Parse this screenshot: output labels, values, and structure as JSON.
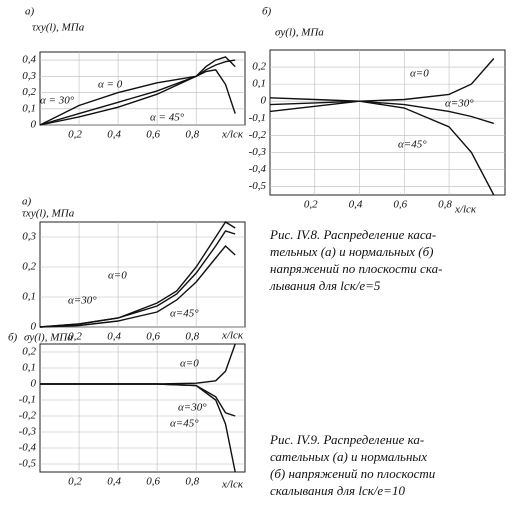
{
  "chart_data": [
    {
      "type": "line",
      "panel": "а)",
      "ylabel": "τxy(l), МПа",
      "xlabel": "x/lск",
      "grid": true,
      "x": [
        0,
        0.2,
        0.4,
        0.6,
        0.8,
        0.85,
        0.9,
        0.95,
        1.0
      ],
      "xlim": [
        0,
        1.05
      ],
      "ylim": [
        0,
        0.45
      ],
      "xticks": [
        {
          "value": 0.2,
          "label": "0,2"
        },
        {
          "value": 0.4,
          "label": "0,4"
        },
        {
          "value": 0.6,
          "label": "0,6"
        },
        {
          "value": 0.8,
          "label": "0,8"
        }
      ],
      "yticks": [
        0,
        {
          "value": 0.1,
          "label": "0,1"
        },
        {
          "value": 0.2,
          "label": "0,2"
        },
        {
          "value": 0.3,
          "label": "0,3"
        },
        {
          "value": 0.4,
          "label": "0,4"
        }
      ],
      "series": [
        {
          "name": "α = 0",
          "color": "#111",
          "values": [
            0,
            0.12,
            0.2,
            0.26,
            0.3,
            0.33,
            0.34,
            0.25,
            0.07
          ]
        },
        {
          "name": "α = 30°",
          "color": "#111",
          "values": [
            0,
            0.07,
            0.14,
            0.21,
            0.3,
            0.36,
            0.4,
            0.42,
            0.36
          ]
        },
        {
          "name": "α = 45°",
          "color": "#111",
          "values": [
            0,
            0.05,
            0.11,
            0.19,
            0.3,
            0.34,
            0.37,
            0.39,
            0.4
          ]
        }
      ]
    },
    {
      "type": "line",
      "panel": "б)",
      "ylabel": "σy(l), МПа",
      "xlabel": "x/lск",
      "grid": true,
      "x": [
        0,
        0.2,
        0.4,
        0.6,
        0.8,
        0.9,
        1.0
      ],
      "xlim": [
        0,
        1.05
      ],
      "ylim": [
        -0.55,
        0.3
      ],
      "xticks": [
        {
          "value": 0.2,
          "label": "0,2"
        },
        {
          "value": 0.4,
          "label": "0,4"
        },
        {
          "value": 0.6,
          "label": "0,6"
        },
        {
          "value": 0.8,
          "label": "0,8"
        }
      ],
      "yticks": [
        {
          "value": 0.2,
          "label": "0,2"
        },
        {
          "value": 0.1,
          "label": "0,1"
        },
        0,
        {
          "value": -0.1,
          "label": "-0,1"
        },
        {
          "value": -0.2,
          "label": "-0,2"
        },
        {
          "value": -0.3,
          "label": "-0,3"
        },
        {
          "value": -0.4,
          "label": "-0,4"
        },
        {
          "value": -0.5,
          "label": "-0,5"
        }
      ],
      "series": [
        {
          "name": "α=0",
          "color": "#111",
          "values": [
            -0.02,
            -0.01,
            0,
            0.01,
            0.04,
            0.1,
            0.25
          ]
        },
        {
          "name": "α=30°",
          "color": "#111",
          "values": [
            0.02,
            0.01,
            0,
            -0.02,
            -0.06,
            -0.09,
            -0.13
          ]
        },
        {
          "name": "α=45°",
          "color": "#111",
          "values": [
            -0.06,
            -0.03,
            0,
            -0.04,
            -0.15,
            -0.3,
            -0.55
          ]
        }
      ]
    },
    {
      "type": "line",
      "panel": "а)",
      "ylabel": "τxy(l), МПа",
      "xlabel": "x/lск",
      "grid": true,
      "x": [
        0,
        0.2,
        0.4,
        0.6,
        0.7,
        0.8,
        0.9,
        0.95,
        1.0
      ],
      "xlim": [
        0,
        1.05
      ],
      "ylim": [
        0,
        0.35
      ],
      "xticks": [
        {
          "value": 0.2,
          "label": "0,2"
        },
        {
          "value": 0.4,
          "label": "0,4"
        },
        {
          "value": 0.6,
          "label": "0,6"
        },
        {
          "value": 0.8,
          "label": "0,8"
        }
      ],
      "yticks": [
        0,
        {
          "value": 0.1,
          "label": "0,1"
        },
        {
          "value": 0.2,
          "label": "0,2"
        },
        {
          "value": 0.3,
          "label": "0,3"
        }
      ],
      "series": [
        {
          "name": "α=0",
          "color": "#111",
          "values": [
            0,
            0.01,
            0.03,
            0.08,
            0.12,
            0.2,
            0.3,
            0.35,
            0.33
          ]
        },
        {
          "name": "α=30°",
          "color": "#111",
          "values": [
            0,
            0.01,
            0.03,
            0.07,
            0.11,
            0.18,
            0.27,
            0.32,
            0.31
          ]
        },
        {
          "name": "α=45°",
          "color": "#111",
          "values": [
            0,
            0.005,
            0.02,
            0.05,
            0.09,
            0.15,
            0.23,
            0.27,
            0.24
          ]
        }
      ]
    },
    {
      "type": "line",
      "panel": "б)",
      "ylabel": "σy(l), МПа",
      "xlabel": "x/lск",
      "grid": true,
      "x": [
        0,
        0.2,
        0.4,
        0.6,
        0.8,
        0.9,
        0.95,
        1.0
      ],
      "xlim": [
        0,
        1.05
      ],
      "ylim": [
        -0.55,
        0.25
      ],
      "xticks": [
        {
          "value": 0.2,
          "label": "0,2"
        },
        {
          "value": 0.4,
          "label": "0,4"
        },
        {
          "value": 0.6,
          "label": "0,6"
        },
        {
          "value": 0.8,
          "label": "0,8"
        }
      ],
      "yticks": [
        {
          "value": 0.2,
          "label": "0,2"
        },
        {
          "value": 0.1,
          "label": "0,1"
        },
        0,
        {
          "value": -0.1,
          "label": "-0,1"
        },
        {
          "value": -0.2,
          "label": "-0,2"
        },
        {
          "value": -0.3,
          "label": "-0,3"
        },
        {
          "value": -0.4,
          "label": "-0,4"
        },
        {
          "value": -0.5,
          "label": "-0,5"
        }
      ],
      "series": [
        {
          "name": "α=0",
          "color": "#111",
          "values": [
            0,
            0,
            0,
            0,
            0.005,
            0.02,
            0.08,
            0.25
          ]
        },
        {
          "name": "α=30°",
          "color": "#111",
          "values": [
            0,
            0,
            0,
            0,
            -0.01,
            -0.08,
            -0.18,
            -0.2
          ]
        },
        {
          "name": "α=45°",
          "color": "#111",
          "values": [
            0,
            0,
            0,
            0,
            -0.01,
            -0.1,
            -0.25,
            -0.55
          ]
        }
      ]
    }
  ],
  "captions": [
    [
      "Рис. IV.8. Распределение каса-",
      "тельных (а) и нормальных (б)",
      "напряжений по плоскости ска-",
      "лывания для lск/e=5"
    ],
    [
      "Рис. IV.9. Распределение ка-",
      "сательных (а) и нормальных",
      "(б) напряжений по плоскости",
      "скалывания для lск/e=10"
    ]
  ]
}
